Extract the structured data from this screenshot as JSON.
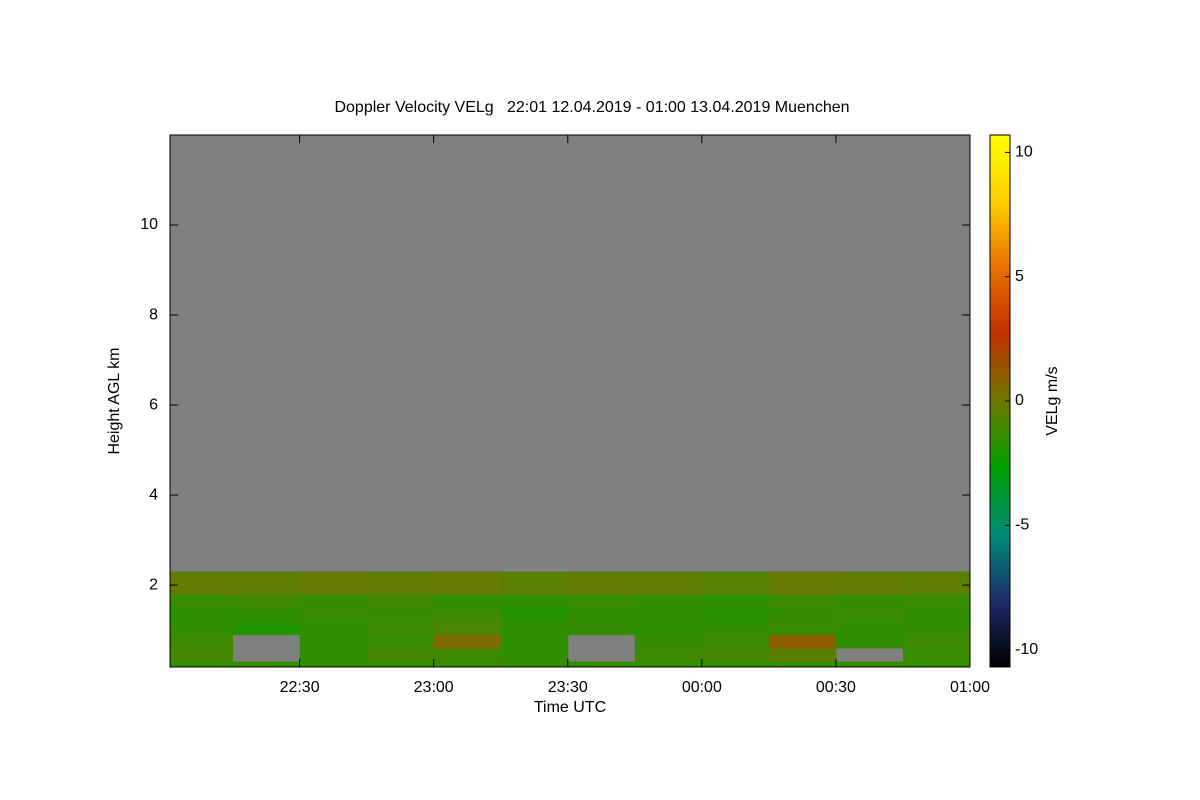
{
  "chart_data": {
    "type": "heatmap",
    "title": "Doppler Velocity VELg   22:01 12.04.2019 - 01:00 13.04.2019 Muenchen",
    "x_label": "Time UTC",
    "y_label": "Height AGL km",
    "colorbar_label": "VELg m/s",
    "xlim": [
      22.0167,
      25
    ],
    "xticks": [
      {
        "value": 22.5,
        "label": "22:30"
      },
      {
        "value": 23,
        "label": "23:00"
      },
      {
        "value": 23.5,
        "label": "23:30"
      },
      {
        "value": 24,
        "label": "00:00"
      },
      {
        "value": 24.5,
        "label": "00:30"
      },
      {
        "value": 25,
        "label": "01:00"
      }
    ],
    "ylim": [
      0.18,
      12
    ],
    "yticks": [
      2,
      4,
      6,
      8,
      10
    ],
    "clim": [
      -10.7,
      10.7
    ],
    "cticks": [
      -10,
      -5,
      0,
      5,
      10
    ],
    "colormap": [
      "#000000",
      "#1c2c6c",
      "#008c78",
      "#00a000",
      "#6e7800",
      "#c03000",
      "#e87000",
      "#ffd000",
      "#ffff00"
    ],
    "missing_color": "#808080",
    "xbins": [
      22.0167,
      22.25,
      22.5,
      22.75,
      23,
      23.25,
      23.5,
      23.75,
      24,
      24.25,
      24.5,
      24.75,
      25
    ],
    "ybins": [
      0.18,
      0.3,
      0.6,
      0.9,
      1.2,
      1.5,
      1.8,
      2.3
    ],
    "z": [
      [
        -1.5,
        -1.5,
        -1.5,
        -1.5,
        -1.5,
        -1.5,
        -1.5,
        -1.5,
        -1.5,
        -1.5,
        -1.5,
        -1.5
      ],
      [
        -1,
        null,
        -1.5,
        -1,
        -1.2,
        -1.5,
        null,
        -1.2,
        -1,
        -0.5,
        null,
        -1.3
      ],
      [
        -1.2,
        null,
        -1.5,
        -1.3,
        0.5,
        -1.6,
        null,
        -1.4,
        -1.2,
        1,
        -1.5,
        -1.2
      ],
      [
        -1.5,
        -1.8,
        -1.5,
        -1.2,
        -0.8,
        -1.5,
        -1.4,
        -1.6,
        -1.5,
        -1.3,
        -1.5,
        -1.4
      ],
      [
        -1.6,
        -1.5,
        -1.3,
        -1.4,
        -1.2,
        -1.8,
        -1.5,
        -1.6,
        -1.7,
        -1.4,
        -1.3,
        -1.5
      ],
      [
        -1.3,
        -1.2,
        -1.4,
        -1.2,
        -1.5,
        -1.6,
        -1.3,
        -1.5,
        -1.6,
        -1.2,
        -1.4,
        -1.3
      ],
      [
        -0.3,
        -0.4,
        -0.2,
        -0.3,
        -0.2,
        -0.5,
        -0.3,
        -0.4,
        -0.6,
        -0.2,
        -0.3,
        -0.4
      ]
    ]
  }
}
